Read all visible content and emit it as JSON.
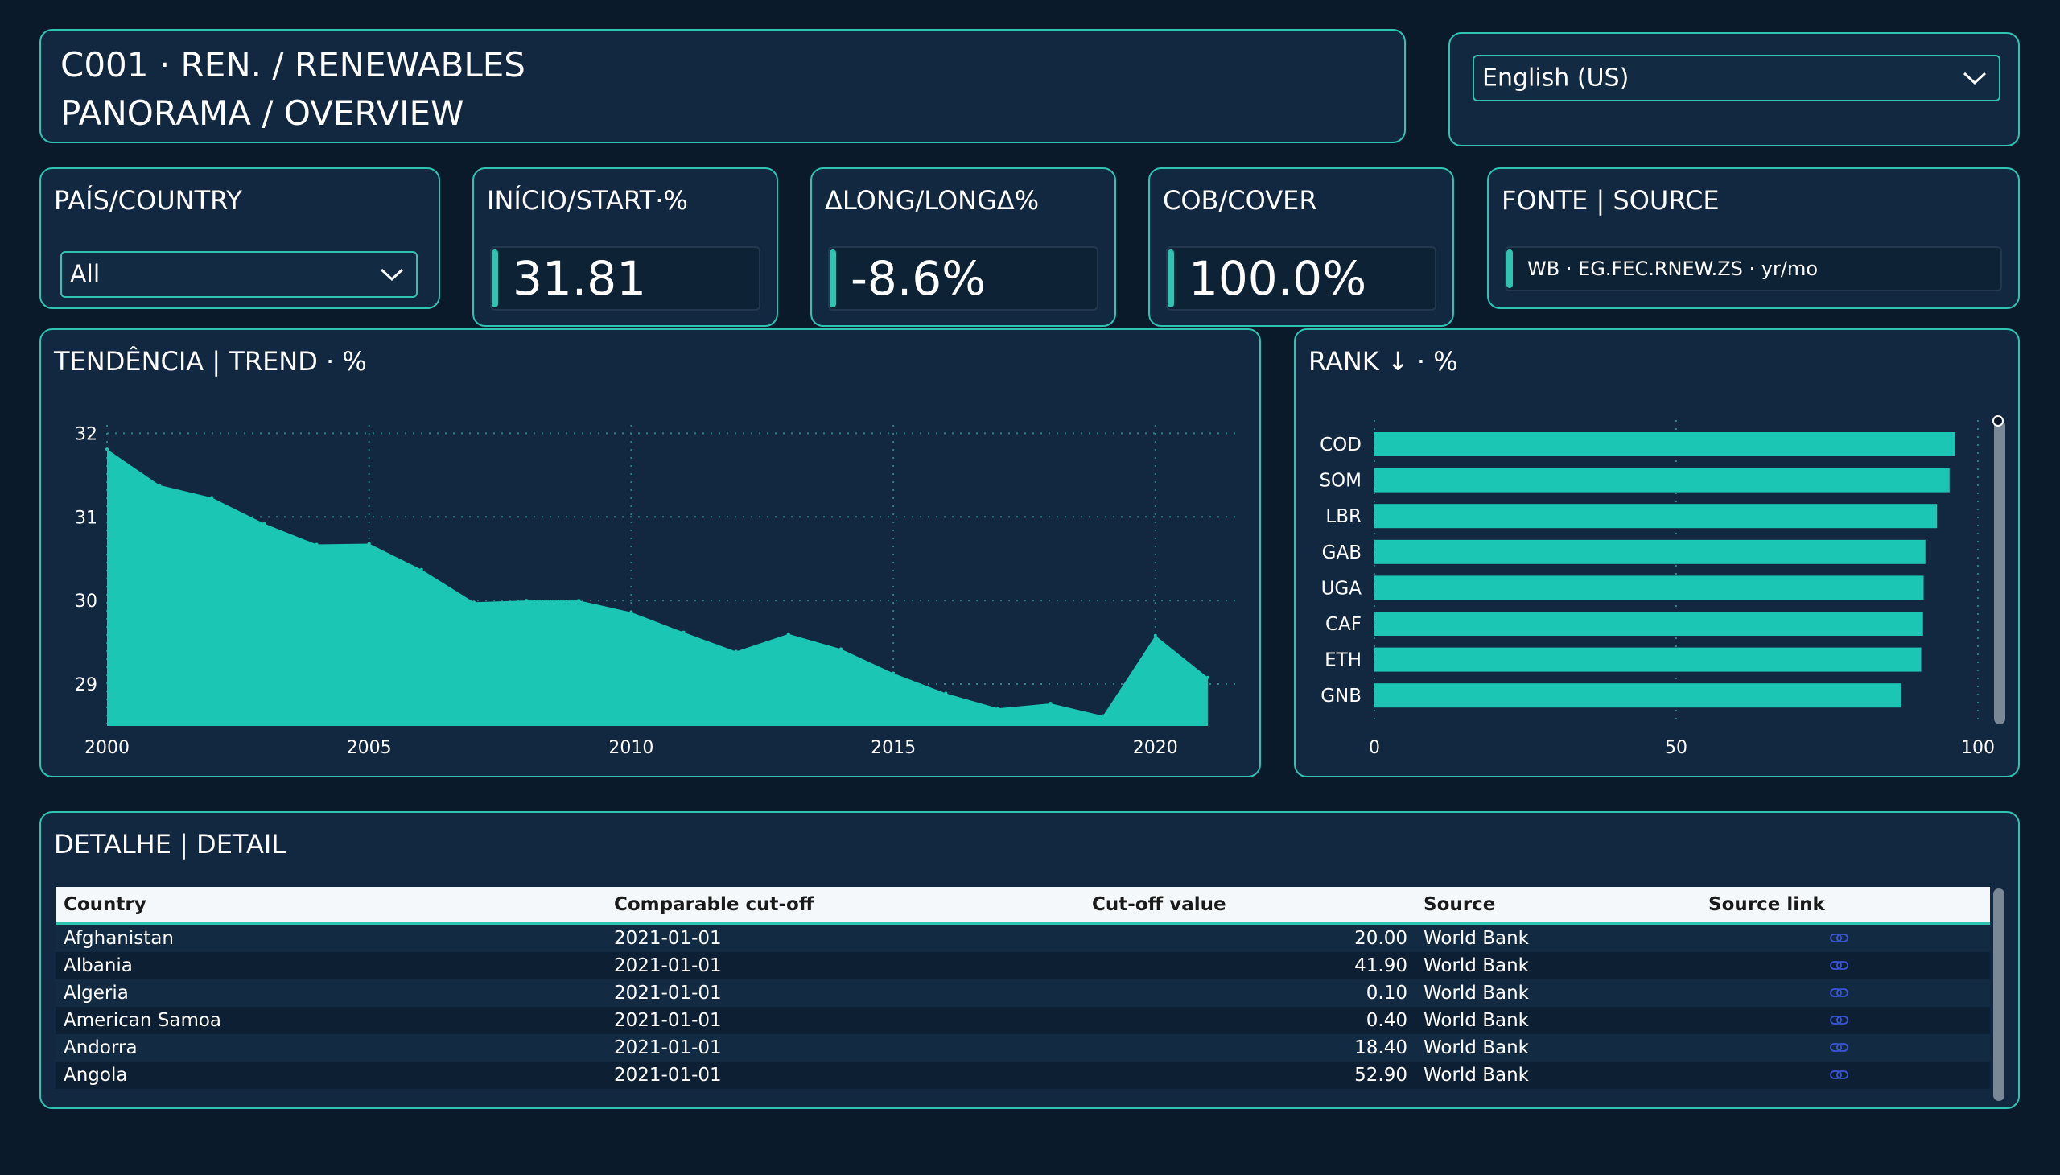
{
  "header": {
    "title_line1": "C001 · REN. / RENEWABLES",
    "title_line2": "PANORAMA / OVERVIEW",
    "language": "English (US)"
  },
  "filters": {
    "country_label": "PAÍS/COUNTRY",
    "country_value": "All"
  },
  "kpis": {
    "start": {
      "label": "INÍCIO/START·%",
      "value": "31.81"
    },
    "long": {
      "label": "ΔLONG/LONGΔ%",
      "value": "-8.6%"
    },
    "cover": {
      "label": "COB/COVER",
      "value": "100.0%"
    },
    "source": {
      "label": "FONTE | SOURCE",
      "value": "WB · EG.FEC.RNEW.ZS · yr/mo"
    }
  },
  "trend": {
    "title": "TENDÊNCIA | TREND · %"
  },
  "rank": {
    "title": "RANK ↓ · %"
  },
  "chart_data": [
    {
      "type": "area",
      "title": "TENDÊNCIA | TREND · %",
      "x": [
        2000,
        2001,
        2002,
        2003,
        2004,
        2005,
        2006,
        2007,
        2008,
        2009,
        2010,
        2011,
        2012,
        2013,
        2014,
        2015,
        2016,
        2017,
        2018,
        2019,
        2020,
        2021
      ],
      "values": [
        31.81,
        31.38,
        31.23,
        30.92,
        30.67,
        30.68,
        30.37,
        29.98,
        30.0,
        30.0,
        29.86,
        29.62,
        29.39,
        29.6,
        29.42,
        29.13,
        28.89,
        28.71,
        28.77,
        28.62,
        29.58,
        29.08
      ],
      "xticks": [
        2000,
        2005,
        2010,
        2015,
        2020
      ],
      "yticks": [
        29,
        30,
        31,
        32
      ],
      "ylim": [
        28.5,
        32.1
      ],
      "grid": true,
      "color": "#1cc6b4"
    },
    {
      "type": "bar",
      "title": "RANK ↓ · %",
      "orientation": "horizontal",
      "categories": [
        "COD",
        "SOM",
        "LBR",
        "GAB",
        "UGA",
        "CAF",
        "ETH",
        "GNB"
      ],
      "values": [
        96.2,
        95.3,
        93.2,
        91.3,
        91.0,
        90.9,
        90.6,
        87.3
      ],
      "xticks": [
        0,
        50,
        100
      ],
      "xlim": [
        0,
        100
      ],
      "grid": true,
      "color": "#1cc6b4"
    }
  ],
  "detail": {
    "title": "DETALHE | DETAIL",
    "columns": [
      "Country",
      "Comparable cut-off",
      "Cut-off value",
      "Source",
      "Source link"
    ],
    "rows": [
      {
        "country": "Afghanistan",
        "cutoff": "2021-01-01",
        "value": "20.00",
        "source": "World Bank"
      },
      {
        "country": "Albania",
        "cutoff": "2021-01-01",
        "value": "41.90",
        "source": "World Bank"
      },
      {
        "country": "Algeria",
        "cutoff": "2021-01-01",
        "value": "0.10",
        "source": "World Bank"
      },
      {
        "country": "American Samoa",
        "cutoff": "2021-01-01",
        "value": "0.40",
        "source": "World Bank"
      },
      {
        "country": "Andorra",
        "cutoff": "2021-01-01",
        "value": "18.40",
        "source": "World Bank"
      },
      {
        "country": "Angola",
        "cutoff": "2021-01-01",
        "value": "52.90",
        "source": "World Bank"
      }
    ]
  },
  "colors": {
    "accent": "#2fc3b2",
    "series": "#1cc6b4",
    "background": "#0b1a2b",
    "card": "#122840",
    "link_icon": "#3a56d4"
  },
  "icons": {
    "dropdown": "chevron-down-icon",
    "link": "link-icon"
  }
}
